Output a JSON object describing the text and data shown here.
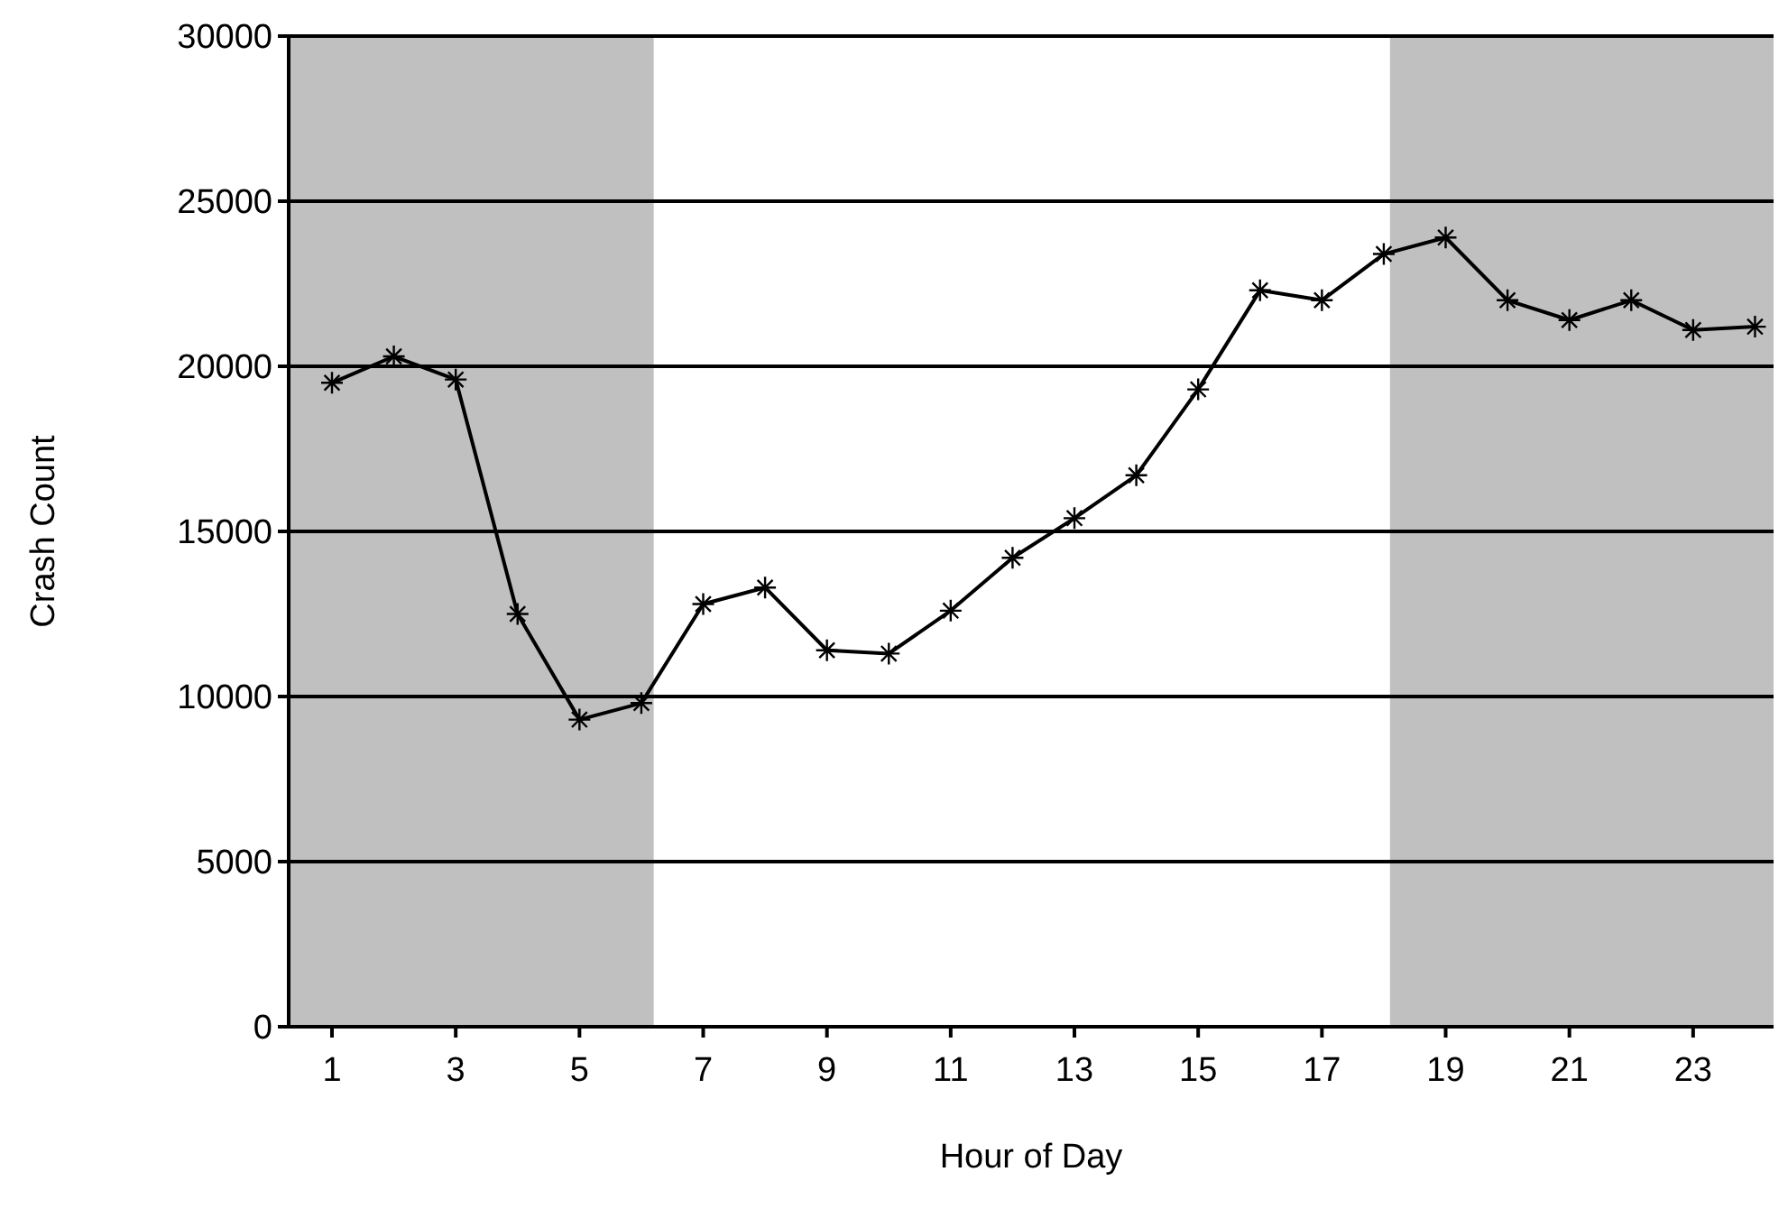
{
  "chart_data": {
    "type": "line",
    "xlabel": "Hour of Day",
    "ylabel": "Crash Count",
    "x": [
      1,
      2,
      3,
      4,
      5,
      6,
      7,
      8,
      9,
      10,
      11,
      12,
      13,
      14,
      15,
      16,
      17,
      18,
      19,
      20,
      21,
      22,
      23,
      24
    ],
    "series": [
      {
        "color": "#000000",
        "values": [
          19500,
          20300,
          19600,
          12500,
          9300,
          9800,
          12800,
          13300,
          11400,
          11300,
          12600,
          14200,
          15400,
          16700,
          19300,
          22300,
          22000,
          23400,
          23900,
          22000,
          21400,
          22000,
          21100,
          21200
        ]
      }
    ],
    "xlim": [
      0.3,
      24.3
    ],
    "xticks": [
      1,
      3,
      5,
      7,
      9,
      11,
      13,
      15,
      17,
      19,
      21,
      23
    ],
    "ylim": [
      0,
      30000
    ],
    "yticks": [
      0,
      5000,
      10000,
      15000,
      20000,
      25000,
      30000
    ],
    "grid": "y",
    "marker": "cross",
    "line_style": "solid",
    "bands": [
      {
        "axis": "x",
        "from": 0.3,
        "to": 6.2,
        "color": "#c0c0c0"
      },
      {
        "axis": "x",
        "from": 18.1,
        "to": 24.3,
        "color": "#c0c0c0"
      }
    ]
  }
}
